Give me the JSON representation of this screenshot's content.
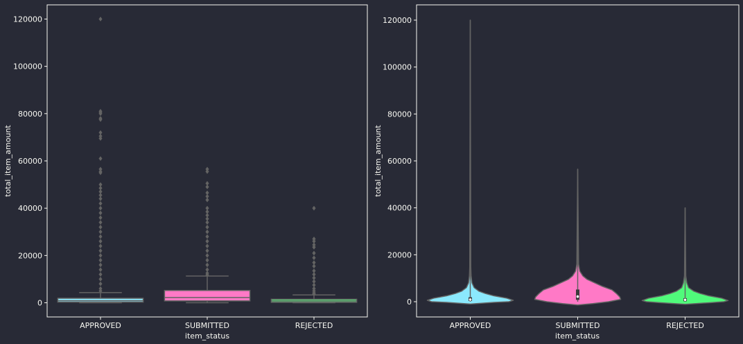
{
  "background": "#282a36",
  "axis_color": "#f8f8f2",
  "chart_data": [
    {
      "type": "box",
      "xlabel": "item_status",
      "ylabel": "total_item_amount",
      "ylim": [
        -6000,
        126000
      ],
      "yticks": [
        0,
        20000,
        40000,
        60000,
        80000,
        100000,
        120000
      ],
      "categories": [
        "APPROVED",
        "SUBMITTED",
        "REJECTED"
      ],
      "colors": [
        "#8be9fd",
        "#ff79c6",
        "#50fa7b"
      ],
      "boxes": [
        {
          "q1": 300,
          "median": 900,
          "q3": 1900,
          "whisker_low": 0,
          "whisker_high": 4300,
          "outliers": [
            120000,
            81000,
            80500,
            80000,
            78000,
            77500,
            72000,
            70500,
            69500,
            61000,
            56500,
            55500,
            55000,
            50000,
            48500,
            47000,
            45500,
            44000,
            42000,
            40000,
            38000,
            36000,
            34000,
            32000,
            30000,
            28000,
            26000,
            24000,
            22000,
            20000,
            18000,
            16000,
            14000,
            12000,
            10000,
            8000,
            6000,
            5000
          ]
        },
        {
          "q1": 800,
          "median": 2200,
          "q3": 5200,
          "whisker_low": 0,
          "whisker_high": 11300,
          "outliers": [
            56500,
            55500,
            50500,
            49000,
            46500,
            45000,
            43500,
            40000,
            38500,
            37000,
            35500,
            34000,
            32000,
            30000,
            28000,
            26000,
            24000,
            22000,
            20000,
            18000,
            16000,
            14000,
            12500,
            11800
          ]
        },
        {
          "q1": 200,
          "median": 800,
          "q3": 1500,
          "whisker_low": 0,
          "whisker_high": 3300,
          "outliers": [
            40000,
            27000,
            26000,
            24500,
            23500,
            21000,
            19000,
            17000,
            15500,
            13500,
            12000,
            10500,
            9000,
            7500,
            6000,
            5000,
            4200,
            3700
          ]
        }
      ]
    },
    {
      "type": "violin",
      "xlabel": "item_status",
      "ylabel": "total_item_amount",
      "ylim": [
        -6500,
        126500
      ],
      "yticks": [
        0,
        20000,
        40000,
        60000,
        80000,
        100000,
        120000
      ],
      "categories": [
        "APPROVED",
        "SUBMITTED",
        "REJECTED"
      ],
      "colors": [
        "#8be9fd",
        "#ff79c6",
        "#50fa7b"
      ],
      "violins": [
        {
          "min": 0,
          "max": 120000,
          "q1": 300,
          "median": 900,
          "q3": 1900,
          "profile": [
            [
              -1000,
              0.0
            ],
            [
              -300,
              0.55
            ],
            [
              0,
              0.9
            ],
            [
              600,
              1.0
            ],
            [
              1500,
              0.85
            ],
            [
              2500,
              0.55
            ],
            [
              3500,
              0.35
            ],
            [
              4500,
              0.2
            ],
            [
              6000,
              0.09
            ],
            [
              8000,
              0.04
            ],
            [
              11000,
              0.02
            ],
            [
              15000,
              0.012
            ],
            [
              120000,
              0.0
            ]
          ]
        },
        {
          "min": 0,
          "max": 56500,
          "q1": 800,
          "median": 2200,
          "q3": 5200,
          "profile": [
            [
              -1400,
              0.0
            ],
            [
              -800,
              0.35
            ],
            [
              0,
              0.72
            ],
            [
              1000,
              1.0
            ],
            [
              2000,
              0.98
            ],
            [
              3500,
              0.9
            ],
            [
              5000,
              0.8
            ],
            [
              6500,
              0.58
            ],
            [
              8000,
              0.4
            ],
            [
              9500,
              0.22
            ],
            [
              11000,
              0.12
            ],
            [
              13000,
              0.05
            ],
            [
              16000,
              0.02
            ],
            [
              56500,
              0.0
            ]
          ]
        },
        {
          "min": 0,
          "max": 40000,
          "q1": 200,
          "median": 800,
          "q3": 1500,
          "profile": [
            [
              -1100,
              0.0
            ],
            [
              -400,
              0.6
            ],
            [
              0,
              0.9
            ],
            [
              500,
              1.0
            ],
            [
              1500,
              0.85
            ],
            [
              2500,
              0.55
            ],
            [
              3500,
              0.35
            ],
            [
              4500,
              0.2
            ],
            [
              6000,
              0.08
            ],
            [
              8000,
              0.04
            ],
            [
              11000,
              0.015
            ],
            [
              40000,
              0.0
            ]
          ]
        }
      ]
    }
  ]
}
